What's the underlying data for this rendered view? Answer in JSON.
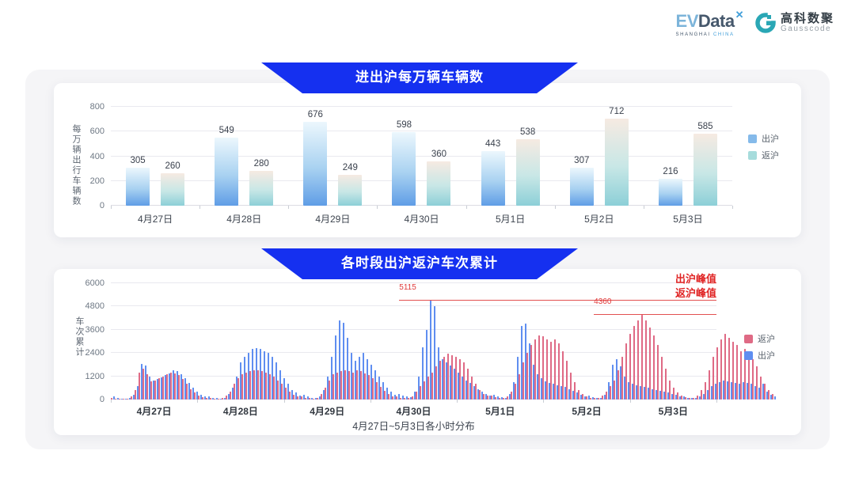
{
  "logo": {
    "ev": "EV",
    "data_word": "Data",
    "x_mark": "✕",
    "sub_left": "SHANGHAI",
    "sub_right": "CHINA",
    "cn_name": "高科数聚",
    "en_name": "Gausscode",
    "icon_color": "#2aa7b5"
  },
  "colors": {
    "banner_blue": "#1530f0",
    "card_bg": "#ffffff",
    "panel_bg": "#f5f5f7",
    "annotation_red": "#e02424"
  },
  "chart_data": [
    {
      "type": "bar",
      "title": "进出沪每万辆车辆数",
      "ylabel": "每万辆出行车辆数",
      "ylim": [
        0,
        800
      ],
      "yticks": [
        0,
        200,
        400,
        600,
        800
      ],
      "grid": true,
      "legend_position": "right",
      "categories": [
        "4月27日",
        "4月28日",
        "4月29日",
        "4月30日",
        "5月1日",
        "5月2日",
        "5月3日"
      ],
      "series": [
        {
          "key": "outbound",
          "name": "出沪",
          "values": [
            305,
            549,
            676,
            598,
            443,
            307,
            216
          ],
          "color_bottom": "#5f9de6",
          "color_mid": "#a9d2f1",
          "color_top": "#ecf7fd",
          "legend_color": "#85baea"
        },
        {
          "key": "return",
          "name": "返沪",
          "values": [
            260,
            280,
            249,
            360,
            538,
            712,
            585
          ],
          "color_bottom": "#8ccfd7",
          "color_mid": "#c8e7e6",
          "color_top": "#f6eae2",
          "legend_color": "#a6dcdc"
        }
      ]
    },
    {
      "type": "bar",
      "title": "各时段出沪返沪车次累计",
      "ylabel": "车次累计",
      "xlabel": "4月27日~5月3日各小时分布",
      "ylim": [
        0,
        6000
      ],
      "yticks": [
        0,
        1200,
        2400,
        3600,
        4800,
        6000
      ],
      "grid": true,
      "legend_position": "right",
      "categories": [
        "4月27日",
        "4月28日",
        "4月29日",
        "4月30日",
        "5月1日",
        "5月2日",
        "5月3日"
      ],
      "series": [
        {
          "key": "return",
          "name": "返沪",
          "color": "#df6a85",
          "hours": [
            [
              100,
              60,
              50,
              40,
              60,
              180,
              500,
              1400,
              1600,
              1300,
              950,
              1000,
              1100,
              1200,
              1300,
              1400,
              1350,
              1250,
              1050,
              800,
              550,
              350,
              200,
              120
            ],
            [
              100,
              70,
              60,
              50,
              80,
              200,
              400,
              800,
              1100,
              1300,
              1400,
              1450,
              1500,
              1500,
              1450,
              1400,
              1300,
              1200,
              1000,
              800,
              600,
              400,
              250,
              150
            ],
            [
              150,
              100,
              80,
              60,
              100,
              300,
              600,
              1000,
              1300,
              1400,
              1450,
              1500,
              1450,
              1400,
              1500,
              1450,
              1350,
              1250,
              1100,
              900,
              650,
              450,
              300,
              180
            ],
            [
              150,
              100,
              80,
              70,
              150,
              400,
              700,
              950,
              1200,
              1400,
              1700,
              2000,
              2200,
              2350,
              2300,
              2200,
              2100,
              1900,
              1600,
              1200,
              800,
              500,
              300,
              200
            ],
            [
              200,
              120,
              100,
              90,
              150,
              400,
              800,
              1300,
              1900,
              2400,
              2800,
              3100,
              3300,
              3250,
              3100,
              3000,
              3100,
              2900,
              2500,
              2000,
              1400,
              900,
              500,
              300
            ],
            [
              150,
              100,
              90,
              80,
              200,
              400,
              700,
              1000,
              1500,
              2200,
              2900,
              3400,
              3800,
              4100,
              4360,
              4100,
              3700,
              3300,
              2800,
              2200,
              1600,
              1000,
              600,
              350
            ],
            [
              200,
              120,
              100,
              90,
              200,
              500,
              900,
              1500,
              2200,
              2700,
              3100,
              3400,
              3200,
              3000,
              2800,
              2500,
              2600,
              2400,
              2100,
              1700,
              1200,
              800,
              500,
              300
            ]
          ]
        },
        {
          "key": "outbound",
          "name": "出沪",
          "color": "#5f8ef0",
          "hours": [
            [
              150,
              80,
              60,
              50,
              80,
              250,
              700,
              1850,
              1750,
              1200,
              1000,
              1050,
              1150,
              1250,
              1350,
              1500,
              1450,
              1300,
              1100,
              850,
              600,
              400,
              250,
              150
            ],
            [
              150,
              100,
              80,
              60,
              100,
              300,
              600,
              1200,
              1900,
              2200,
              2400,
              2600,
              2650,
              2600,
              2500,
              2400,
              2200,
              1900,
              1500,
              1100,
              800,
              500,
              350,
              200
            ],
            [
              250,
              150,
              100,
              80,
              150,
              500,
              1200,
              2200,
              3300,
              4100,
              3950,
              3200,
              2400,
              2000,
              2200,
              2400,
              2100,
              1800,
              1500,
              1200,
              900,
              600,
              400,
              250
            ],
            [
              300,
              200,
              150,
              120,
              400,
              1200,
              2700,
              3600,
              5115,
              4800,
              2700,
              2100,
              1900,
              1750,
              1600,
              1400,
              1200,
              1000,
              850,
              700,
              550,
              400,
              300,
              200
            ],
            [
              250,
              150,
              120,
              100,
              300,
              900,
              2200,
              3800,
              3900,
              2900,
              1800,
              1300,
              1100,
              950,
              850,
              800,
              750,
              700,
              650,
              550,
              450,
              350,
              250,
              180
            ],
            [
              200,
              120,
              100,
              90,
              250,
              900,
              1800,
              2100,
              1700,
              1200,
              900,
              800,
              750,
              700,
              650,
              600,
              550,
              500,
              450,
              400,
              350,
              300,
              250,
              180
            ],
            [
              150,
              100,
              80,
              70,
              150,
              300,
              500,
              700,
              800,
              900,
              1000,
              950,
              900,
              850,
              800,
              900,
              850,
              800,
              700,
              600,
              800,
              400,
              250,
              150
            ]
          ]
        }
      ],
      "annotations": [
        {
          "value": 5115,
          "label": "出沪峰值",
          "series_key": "outbound",
          "day_index": 3,
          "hour_index": 8
        },
        {
          "value": 4360,
          "label": "返沪峰值",
          "series_key": "return",
          "day_index": 5,
          "hour_index": 14
        }
      ]
    }
  ]
}
